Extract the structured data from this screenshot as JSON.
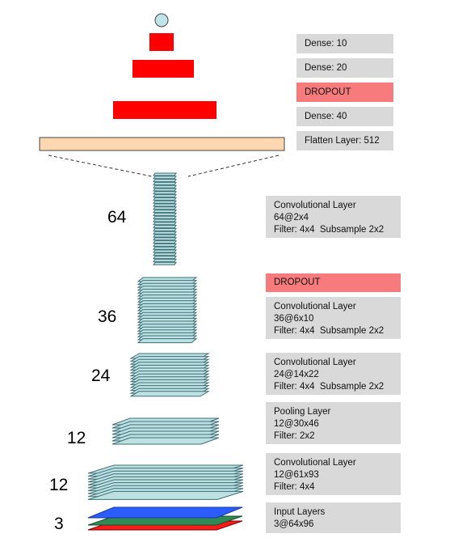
{
  "colors": {
    "conv_fill": "#bde0e3",
    "conv_stroke": "#3d6f76",
    "dense_fill": "#ff0000",
    "flatten_fill": "#fdd7b0",
    "output_fill": "#bfe3e6",
    "dropout_label_bg": "#f77b7d",
    "label_bg": "#d9d9d9",
    "input_blue": "#2a5cff",
    "input_green": "#2f8a55",
    "input_red": "#ff1a1a"
  },
  "labels": {
    "dense_10": "Dense: 10",
    "dense_20": "Dense: 20",
    "dropout_top": "DROPOUT",
    "dense_40": "Dense: 40",
    "flatten": "Flatten Layer: 512",
    "conv64": [
      "Convolutional Layer",
      "64@2x4",
      "Filter: 4x4  Subsample 2x2"
    ],
    "dropout_mid": "DROPOUT",
    "conv36": [
      "Convolutional Layer",
      "36@6x10",
      "Filter: 4x4  Subsample 2x2"
    ],
    "conv24": [
      "Convolutional Layer",
      "24@14x22",
      "Filter: 4x4  Subsample 2x2"
    ],
    "pool12": [
      "Pooling Layer",
      "12@30x46",
      "Filter: 2x2"
    ],
    "conv12": [
      "Convolutional Layer",
      "12@61x93",
      "Filter: 4x4"
    ],
    "input": [
      "Input Layers",
      "3@64x96"
    ]
  },
  "counts": {
    "c64": "64",
    "c36": "36",
    "c24": "24",
    "c12a": "12",
    "c12b": "12",
    "c3": "3"
  }
}
